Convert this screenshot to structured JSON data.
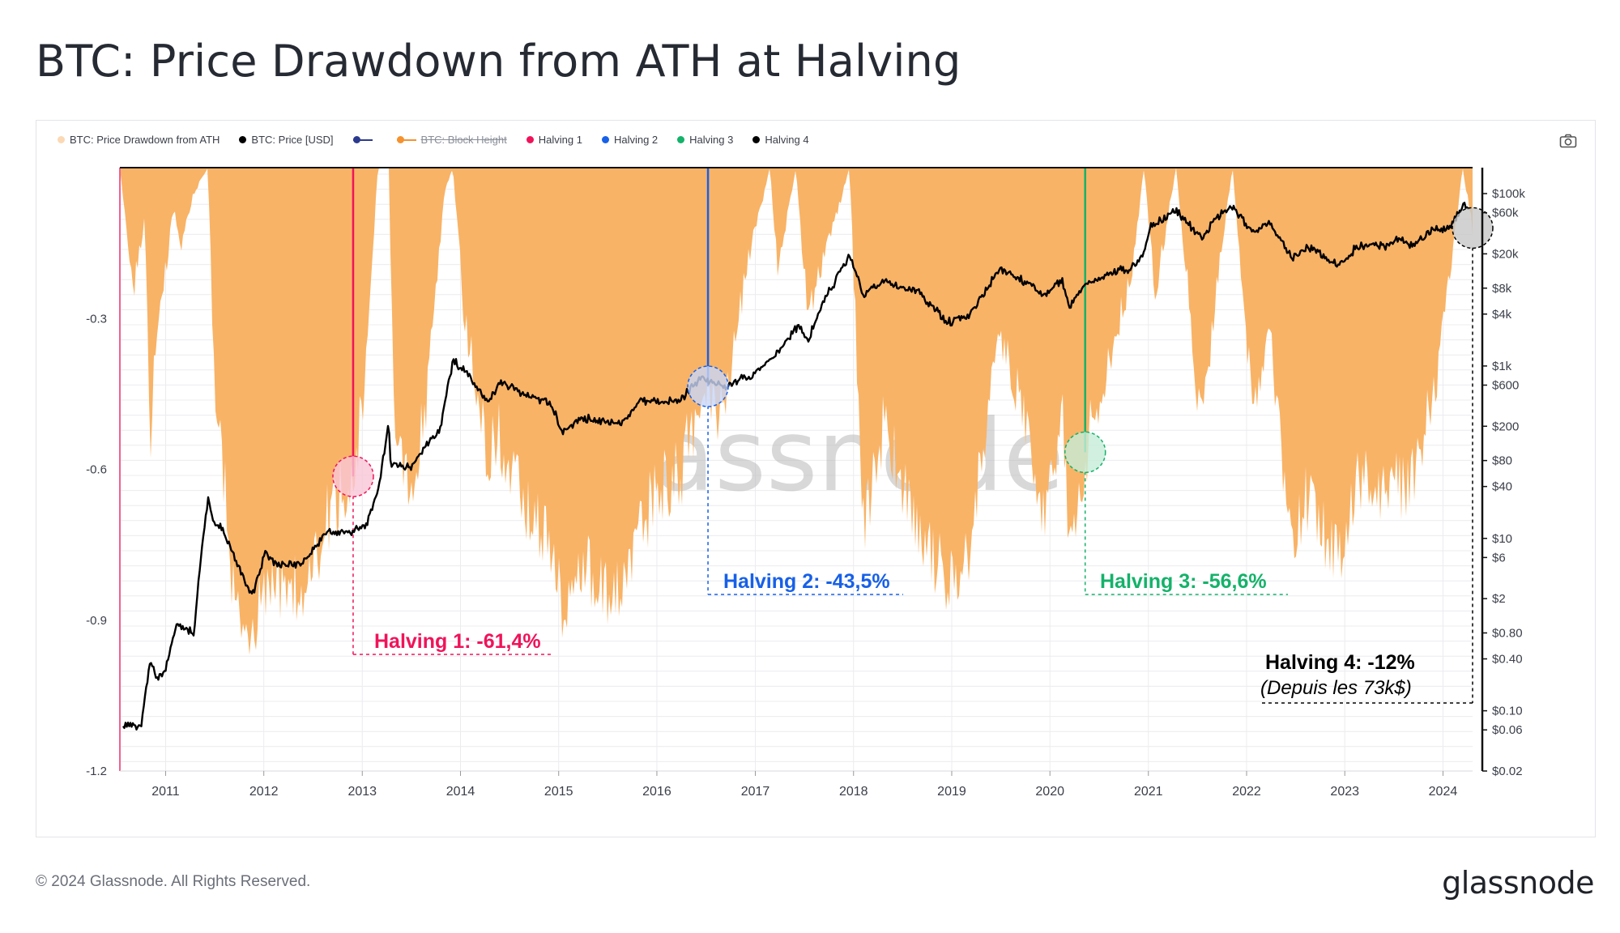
{
  "title": "BTC: Price Drawdown from ATH at Halving",
  "footer": "© 2024 Glassnode. All Rights Reserved.",
  "brand": "glassnode",
  "watermark": "glassnode",
  "legend": [
    {
      "label": "BTC: Price Drawdown from ATH",
      "color": "#fbd9b4",
      "style": "dot"
    },
    {
      "label": "BTC: Price [USD]",
      "color": "#000000",
      "style": "dot"
    },
    {
      "label": "",
      "color": "#2b3a8f",
      "style": "line"
    },
    {
      "label": "BTC: Block Height",
      "color": "#f5922f",
      "style": "line-strike"
    },
    {
      "label": "Halving 1",
      "color": "#f0135a",
      "style": "dot"
    },
    {
      "label": "Halving 2",
      "color": "#1760e8",
      "style": "dot"
    },
    {
      "label": "Halving 3",
      "color": "#14b26a",
      "style": "dot"
    },
    {
      "label": "Halving 4",
      "color": "#000000",
      "style": "dot"
    }
  ],
  "colors": {
    "drawdown_fill": "#f8b366",
    "price": "#000000",
    "halving1": "#f0135a",
    "halving2": "#1760e8",
    "halving3": "#14b26a",
    "halving4": "#000000",
    "grid": "#ececef",
    "axis_text": "#3a3e48"
  },
  "chart_data": {
    "type": "area",
    "x_axis": {
      "type": "date",
      "ticks": [
        "2011",
        "2012",
        "2013",
        "2014",
        "2015",
        "2016",
        "2017",
        "2018",
        "2019",
        "2020",
        "2021",
        "2022",
        "2023",
        "2024"
      ],
      "range": [
        "2010-07-15",
        "2024-04-20"
      ]
    },
    "y_left": {
      "label": "",
      "ticks": [
        -0.3,
        -0.6,
        -0.9,
        -1.2
      ],
      "range": [
        -1.2,
        0
      ]
    },
    "y_right": {
      "label": "",
      "scale": "log",
      "ticks": [
        "$100k",
        "$60k",
        "$20k",
        "$8k",
        "$4k",
        "$1k",
        "$600",
        "$200",
        "$80",
        "$40",
        "$10",
        "$6",
        "$2",
        "$0.80",
        "$0.40",
        "$0.10",
        "$0.06",
        "$0.02"
      ],
      "tick_values": [
        100000,
        60000,
        20000,
        8000,
        4000,
        1000,
        600,
        200,
        80,
        40,
        10,
        6,
        2,
        0.8,
        0.4,
        0.1,
        0.06,
        0.02
      ]
    },
    "grid": true,
    "series": [
      {
        "name": "BTC: Price Drawdown from ATH",
        "axis": "left",
        "points": [
          [
            "2010-07-15",
            0.0
          ],
          [
            "2010-09-01",
            -0.25
          ],
          [
            "2010-10-15",
            -0.1
          ],
          [
            "2010-11-05",
            -0.55
          ],
          [
            "2010-12-01",
            -0.3
          ],
          [
            "2011-01-01",
            -0.2
          ],
          [
            "2011-02-01",
            -0.08
          ],
          [
            "2011-03-01",
            -0.15
          ],
          [
            "2011-04-15",
            -0.05
          ],
          [
            "2011-06-08",
            0.0
          ],
          [
            "2011-07-01",
            -0.45
          ],
          [
            "2011-08-01",
            -0.6
          ],
          [
            "2011-09-01",
            -0.8
          ],
          [
            "2011-10-01",
            -0.88
          ],
          [
            "2011-11-18",
            -0.93
          ],
          [
            "2012-01-01",
            -0.85
          ],
          [
            "2012-03-01",
            -0.82
          ],
          [
            "2012-05-01",
            -0.84
          ],
          [
            "2012-07-01",
            -0.78
          ],
          [
            "2012-09-01",
            -0.68
          ],
          [
            "2012-11-28",
            -0.614
          ],
          [
            "2013-01-15",
            -0.4
          ],
          [
            "2013-02-28",
            0.0
          ],
          [
            "2013-04-10",
            0.0
          ],
          [
            "2013-05-01",
            -0.58
          ],
          [
            "2013-07-05",
            -0.62
          ],
          [
            "2013-09-01",
            -0.45
          ],
          [
            "2013-11-01",
            -0.05
          ],
          [
            "2013-12-04",
            0.0
          ],
          [
            "2014-01-15",
            -0.3
          ],
          [
            "2014-04-01",
            -0.55
          ],
          [
            "2014-06-01",
            -0.55
          ],
          [
            "2014-09-01",
            -0.68
          ],
          [
            "2014-12-01",
            -0.75
          ],
          [
            "2015-01-14",
            -0.86
          ],
          [
            "2015-04-01",
            -0.8
          ],
          [
            "2015-08-24",
            -0.85
          ],
          [
            "2015-11-04",
            -0.72
          ],
          [
            "2016-01-01",
            -0.65
          ],
          [
            "2016-04-01",
            -0.6
          ],
          [
            "2016-06-17",
            -0.45
          ],
          [
            "2016-07-09",
            -0.435
          ],
          [
            "2016-09-01",
            -0.5
          ],
          [
            "2016-12-01",
            -0.2
          ],
          [
            "2017-02-24",
            0.0
          ],
          [
            "2017-03-25",
            -0.2
          ],
          [
            "2017-06-01",
            0.0
          ],
          [
            "2017-07-15",
            -0.3
          ],
          [
            "2017-12-17",
            0.0
          ],
          [
            "2018-02-06",
            -0.7
          ],
          [
            "2018-05-01",
            -0.5
          ],
          [
            "2018-08-01",
            -0.7
          ],
          [
            "2018-11-25",
            -0.8
          ],
          [
            "2018-12-15",
            -0.84
          ],
          [
            "2019-03-01",
            -0.78
          ],
          [
            "2019-06-26",
            -0.32
          ],
          [
            "2019-09-01",
            -0.45
          ],
          [
            "2019-12-18",
            -0.7
          ],
          [
            "2020-02-13",
            -0.48
          ],
          [
            "2020-03-13",
            -0.75
          ],
          [
            "2020-05-11",
            -0.566
          ],
          [
            "2020-08-01",
            -0.4
          ],
          [
            "2020-11-01",
            -0.2
          ],
          [
            "2020-12-16",
            0.0
          ],
          [
            "2021-01-25",
            -0.25
          ],
          [
            "2021-04-14",
            0.0
          ],
          [
            "2021-07-20",
            -0.53
          ],
          [
            "2021-09-07",
            -0.25
          ],
          [
            "2021-11-10",
            0.0
          ],
          [
            "2022-01-24",
            -0.5
          ],
          [
            "2022-03-28",
            -0.32
          ],
          [
            "2022-06-18",
            -0.74
          ],
          [
            "2022-08-15",
            -0.65
          ],
          [
            "2022-11-21",
            -0.77
          ],
          [
            "2023-01-01",
            -0.76
          ],
          [
            "2023-02-16",
            -0.64
          ],
          [
            "2023-06-15",
            -0.63
          ],
          [
            "2023-09-11",
            -0.63
          ],
          [
            "2023-12-01",
            -0.45
          ],
          [
            "2024-03-14",
            0.0
          ],
          [
            "2024-04-20",
            -0.12
          ]
        ]
      },
      {
        "name": "BTC: Price [USD]",
        "axis": "right",
        "points": [
          [
            "2010-07-15",
            0.06
          ],
          [
            "2010-08-15",
            0.07
          ],
          [
            "2010-10-01",
            0.065
          ],
          [
            "2010-11-06",
            0.39
          ],
          [
            "2010-12-01",
            0.22
          ],
          [
            "2011-01-01",
            0.3
          ],
          [
            "2011-02-10",
            1.0
          ],
          [
            "2011-04-15",
            0.8
          ],
          [
            "2011-05-15",
            7.0
          ],
          [
            "2011-06-08",
            29.6
          ],
          [
            "2011-07-01",
            15.0
          ],
          [
            "2011-08-01",
            13.0
          ],
          [
            "2011-09-01",
            8.0
          ],
          [
            "2011-10-01",
            4.5
          ],
          [
            "2011-11-18",
            2.1
          ],
          [
            "2012-01-05",
            6.8
          ],
          [
            "2012-02-15",
            5.0
          ],
          [
            "2012-04-01",
            4.9
          ],
          [
            "2012-06-01",
            5.3
          ],
          [
            "2012-08-15",
            11.5
          ],
          [
            "2012-11-28",
            12.3
          ],
          [
            "2013-01-15",
            14.0
          ],
          [
            "2013-03-01",
            34.0
          ],
          [
            "2013-04-09",
            230.0
          ],
          [
            "2013-04-16",
            70.0
          ],
          [
            "2013-07-05",
            68.0
          ],
          [
            "2013-09-01",
            130.0
          ],
          [
            "2013-10-15",
            170.0
          ],
          [
            "2013-12-04",
            1150.0
          ],
          [
            "2014-01-15",
            900.0
          ],
          [
            "2014-04-10",
            380.0
          ],
          [
            "2014-06-01",
            650.0
          ],
          [
            "2014-09-01",
            470.0
          ],
          [
            "2014-12-01",
            370.0
          ],
          [
            "2015-01-14",
            175.0
          ],
          [
            "2015-04-01",
            250.0
          ],
          [
            "2015-08-24",
            210.0
          ],
          [
            "2015-11-04",
            400.0
          ],
          [
            "2016-01-15",
            380.0
          ],
          [
            "2016-04-01",
            420.0
          ],
          [
            "2016-06-17",
            760.0
          ],
          [
            "2016-07-09",
            650.0
          ],
          [
            "2016-09-01",
            580.0
          ],
          [
            "2016-12-15",
            780.0
          ],
          [
            "2017-03-01",
            1190.0
          ],
          [
            "2017-06-11",
            2950.0
          ],
          [
            "2017-07-15",
            1900.0
          ],
          [
            "2017-09-01",
            4900.0
          ],
          [
            "2017-12-17",
            19500.0
          ],
          [
            "2018-02-06",
            6900.0
          ],
          [
            "2018-05-05",
            9800.0
          ],
          [
            "2018-09-01",
            7000.0
          ],
          [
            "2018-12-15",
            3200.0
          ],
          [
            "2019-03-01",
            3800.0
          ],
          [
            "2019-06-26",
            13000.0
          ],
          [
            "2019-09-15",
            10200.0
          ],
          [
            "2019-12-18",
            6600.0
          ],
          [
            "2020-02-13",
            10300.0
          ],
          [
            "2020-03-13",
            4900.0
          ],
          [
            "2020-05-11",
            8600.0
          ],
          [
            "2020-08-01",
            11800.0
          ],
          [
            "2020-11-01",
            13800.0
          ],
          [
            "2020-12-16",
            21000.0
          ],
          [
            "2021-01-08",
            41000.0
          ],
          [
            "2021-04-14",
            63500.0
          ],
          [
            "2021-07-20",
            29800.0
          ],
          [
            "2021-09-07",
            52000.0
          ],
          [
            "2021-11-10",
            68800.0
          ],
          [
            "2022-01-24",
            35000.0
          ],
          [
            "2022-03-28",
            47500.0
          ],
          [
            "2022-06-18",
            17700.0
          ],
          [
            "2022-08-15",
            24400.0
          ],
          [
            "2022-11-21",
            15500.0
          ],
          [
            "2023-01-01",
            16600.0
          ],
          [
            "2023-02-16",
            24800.0
          ],
          [
            "2023-06-15",
            25000.0
          ],
          [
            "2023-07-13",
            31400.0
          ],
          [
            "2023-09-11",
            25000.0
          ],
          [
            "2023-12-01",
            38500.0
          ],
          [
            "2024-01-23",
            39500.0
          ],
          [
            "2024-03-14",
            73100.0
          ],
          [
            "2024-04-20",
            64000.0
          ]
        ]
      }
    ],
    "halvings": [
      {
        "name": "Halving 1",
        "date": "2012-11-28",
        "drawdown": -0.614,
        "label": "Halving 1: -61,4%"
      },
      {
        "name": "Halving 2",
        "date": "2016-07-09",
        "drawdown": -0.435,
        "label": "Halving 2: -43,5%"
      },
      {
        "name": "Halving 3",
        "date": "2020-05-11",
        "drawdown": -0.566,
        "label": "Halving 3: -56,6%"
      },
      {
        "name": "Halving 4",
        "date": "2024-04-20",
        "drawdown": -0.12,
        "label": "Halving 4: -12%",
        "sublabel": "(Depuis les 73k$)"
      }
    ]
  }
}
